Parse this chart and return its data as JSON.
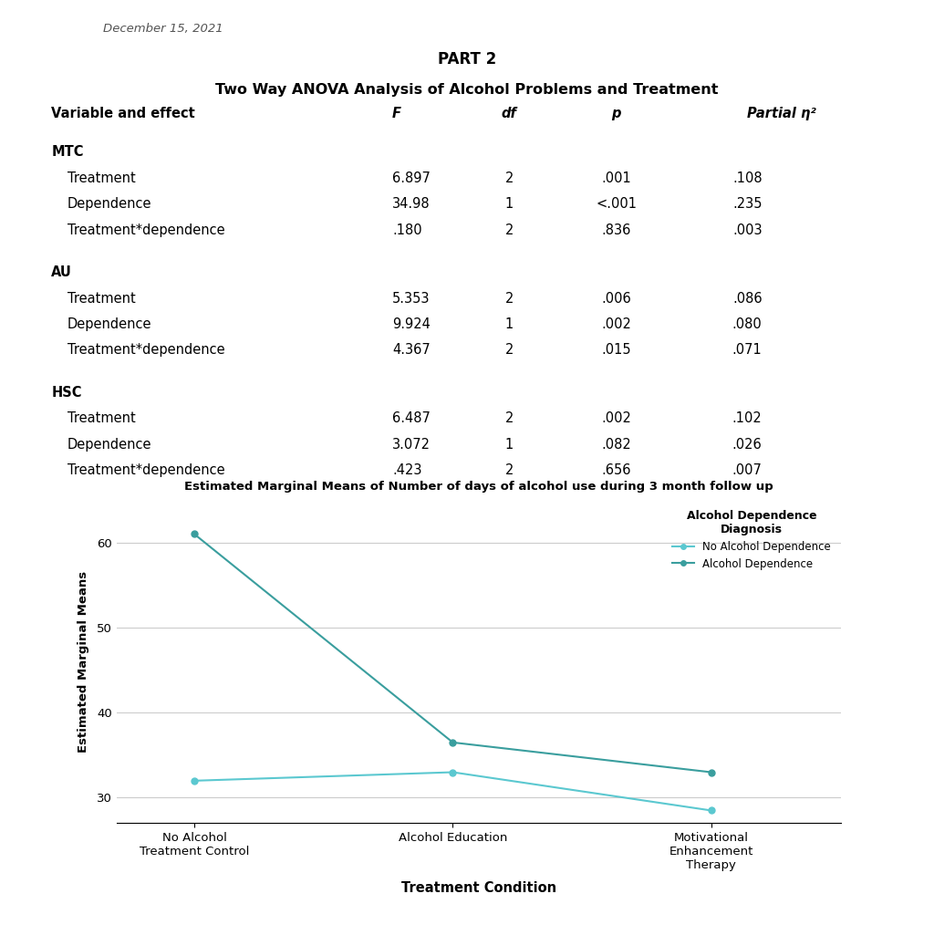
{
  "date_text": "December 15, 2021",
  "part_title": "PART 2",
  "table_title": "Two Way ANOVA Analysis of Alcohol Problems and Treatment",
  "col_headers": [
    "Variable and effect",
    "F",
    "df",
    "p",
    "Partial η²"
  ],
  "sections": [
    {
      "name": "MTC",
      "rows": [
        [
          "Treatment",
          "6.897",
          "2",
          ".001",
          ".108"
        ],
        [
          "Dependence",
          "34.98",
          "1",
          "<.001",
          ".235"
        ],
        [
          "Treatment*dependence",
          ".180",
          "2",
          ".836",
          ".003"
        ]
      ]
    },
    {
      "name": "AU",
      "rows": [
        [
          "Treatment",
          "5.353",
          "2",
          ".006",
          ".086"
        ],
        [
          "Dependence",
          "9.924",
          "1",
          ".002",
          ".080"
        ],
        [
          "Treatment*dependence",
          "4.367",
          "2",
          ".015",
          ".071"
        ]
      ]
    },
    {
      "name": "HSC",
      "rows": [
        [
          "Treatment",
          "6.487",
          "2",
          ".002",
          ".102"
        ],
        [
          "Dependence",
          "3.072",
          "1",
          ".082",
          ".026"
        ],
        [
          "Treatment*dependence",
          ".423",
          "2",
          ".656",
          ".007"
        ]
      ]
    }
  ],
  "chart_title": "Estimated Marginal Means of Number of days of alcohol use during 3 month follow up",
  "chart_xlabel": "Treatment Condition",
  "chart_ylabel": "Estimated Marginal Means",
  "legend_title": "Alcohol Dependence\nDiagnosis",
  "x_labels": [
    "No Alcohol\nTreatment Control",
    "Alcohol Education",
    "Motivational\nEnhancement\nTherapy"
  ],
  "line_no_dep": [
    32.0,
    33.0,
    28.5
  ],
  "line_dep": [
    61.0,
    36.5,
    33.0
  ],
  "color_no_dep": "#5bc8d0",
  "color_dep": "#3a9e9e",
  "ylim": [
    27,
    65
  ],
  "yticks": [
    30,
    40,
    50,
    60
  ],
  "bg_color": "#ffffff"
}
